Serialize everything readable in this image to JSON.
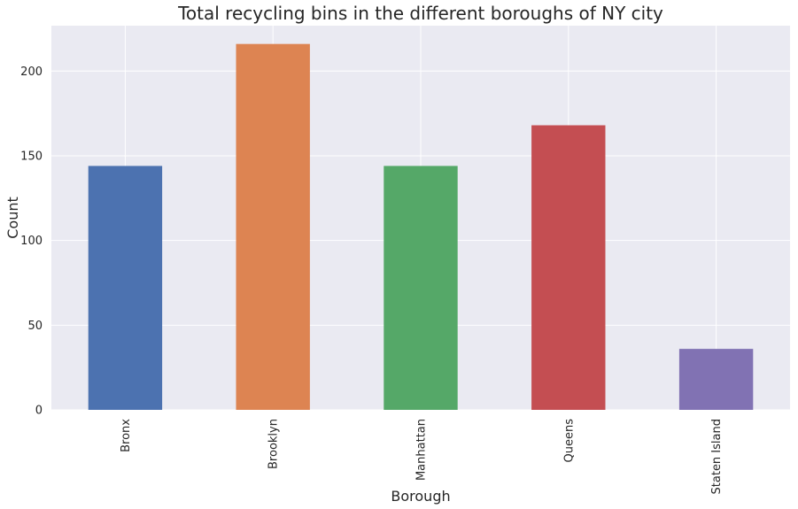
{
  "chart_data": {
    "type": "bar",
    "title": "Total recycling bins in the different boroughs of NY city",
    "xlabel": "Borough",
    "ylabel": "Count",
    "categories": [
      "Bronx",
      "Brooklyn",
      "Manhattan",
      "Queens",
      "Staten Island"
    ],
    "values": [
      144,
      216,
      144,
      168,
      36
    ],
    "colors": [
      "#4c72b0",
      "#dd8452",
      "#55a868",
      "#c44e52",
      "#8172b3"
    ],
    "yticks": [
      0,
      50,
      100,
      150,
      200
    ],
    "ylim": [
      0,
      226.8
    ],
    "grid": true,
    "legend": "none",
    "background": "#eaeaf2",
    "grid_color": "#ffffff"
  }
}
